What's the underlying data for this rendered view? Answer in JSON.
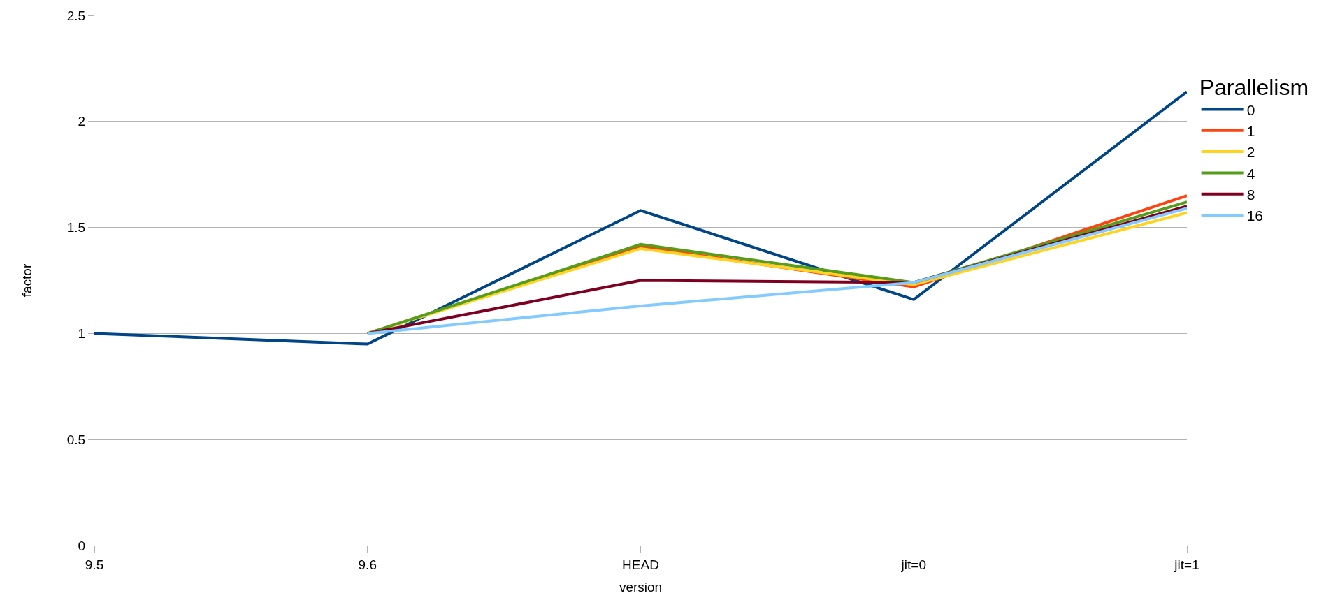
{
  "chart_data": {
    "type": "line",
    "xlabel": "version",
    "ylabel": "factor",
    "legend_title": "Parallelism",
    "categories": [
      "9.5",
      "9.6",
      "HEAD",
      "jit=0",
      "jit=1"
    ],
    "series": [
      {
        "name": "0",
        "color": "#004586",
        "values": [
          1.0,
          0.95,
          1.58,
          1.16,
          2.14
        ]
      },
      {
        "name": "1",
        "color": "#ff420e",
        "values": [
          null,
          1.0,
          1.41,
          1.22,
          1.65
        ]
      },
      {
        "name": "2",
        "color": "#ffd320",
        "values": [
          null,
          1.0,
          1.4,
          1.23,
          1.57
        ]
      },
      {
        "name": "4",
        "color": "#579d1c",
        "values": [
          null,
          1.0,
          1.42,
          1.24,
          1.62
        ]
      },
      {
        "name": "8",
        "color": "#7e0021",
        "values": [
          null,
          1.0,
          1.25,
          1.24,
          1.6
        ]
      },
      {
        "name": "16",
        "color": "#83caff",
        "values": [
          null,
          1.0,
          1.13,
          1.24,
          1.59
        ]
      }
    ],
    "ylim": [
      0,
      2.5
    ],
    "yticks": [
      0,
      0.5,
      1,
      1.5,
      2,
      2.5
    ],
    "grid": "y",
    "legend": "right",
    "marker": "none",
    "line_style": "solid"
  }
}
